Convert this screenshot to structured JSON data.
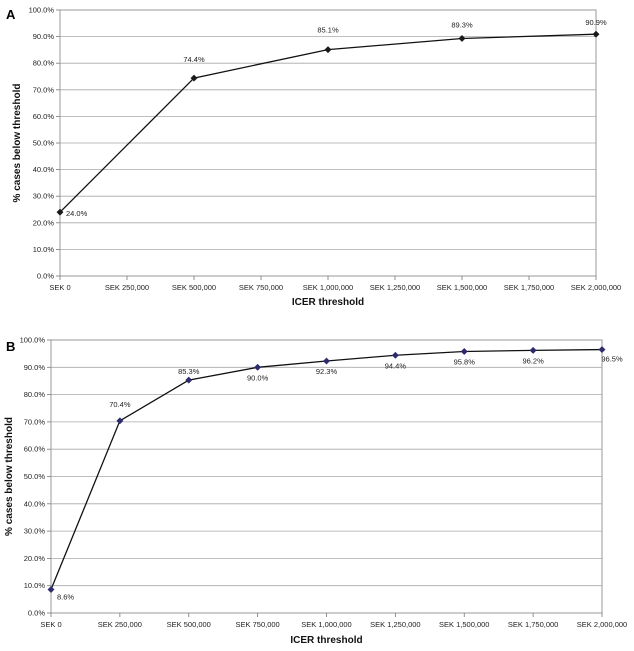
{
  "chart_data": [
    {
      "type": "line",
      "panel_label": "A",
      "xlabel": "ICER threshold",
      "ylabel": "% cases below threshold",
      "categories": [
        "SEK 0",
        "SEK 250,000",
        "SEK 500,000",
        "SEK 750,000",
        "SEK 1,000,000",
        "SEK 1,250,000",
        "SEK 1,500,000",
        "SEK 1,750,000",
        "SEK 2,000,000"
      ],
      "y_ticks": [
        "0.0%",
        "10.0%",
        "20.0%",
        "30.0%",
        "40.0%",
        "50.0%",
        "60.0%",
        "70.0%",
        "80.0%",
        "90.0%",
        "100.0%"
      ],
      "ylim": [
        0,
        100
      ],
      "grid": true,
      "series": [
        {
          "marker": "diamond",
          "color": "#1a1a1a",
          "x": [
            0,
            500000,
            1000000,
            1500000,
            2000000
          ],
          "values": [
            24.0,
            74.4,
            85.1,
            89.3,
            90.9
          ],
          "labels": [
            "24.0%",
            "74.4%",
            "85.1%",
            "89.3%",
            "90.9%"
          ]
        }
      ]
    },
    {
      "type": "line",
      "panel_label": "B",
      "xlabel": "ICER threshold",
      "ylabel": "% cases below threshold",
      "categories": [
        "SEK 0",
        "SEK 250,000",
        "SEK 500,000",
        "SEK 750,000",
        "SEK 1,000,000",
        "SEK 1,250,000",
        "SEK 1,500,000",
        "SEK 1,750,000",
        "SEK 2,000,000"
      ],
      "y_ticks": [
        "0.0%",
        "10.0%",
        "20.0%",
        "30.0%",
        "40.0%",
        "50.0%",
        "60.0%",
        "70.0%",
        "80.0%",
        "90.0%",
        "100.0%"
      ],
      "ylim": [
        0,
        100
      ],
      "grid": true,
      "series": [
        {
          "marker": "diamond",
          "color": "#2e2a6e",
          "x": [
            0,
            250000,
            500000,
            750000,
            1000000,
            1250000,
            1500000,
            1750000,
            2000000
          ],
          "values": [
            8.6,
            70.4,
            85.3,
            90.0,
            92.3,
            94.4,
            95.8,
            96.2,
            96.5
          ],
          "labels": [
            "8.6%",
            "70.4%",
            "85.3%",
            "90.0%",
            "92.3%",
            "94.4%",
            "95.8%",
            "96.2%",
            "96.5%"
          ]
        }
      ]
    }
  ]
}
